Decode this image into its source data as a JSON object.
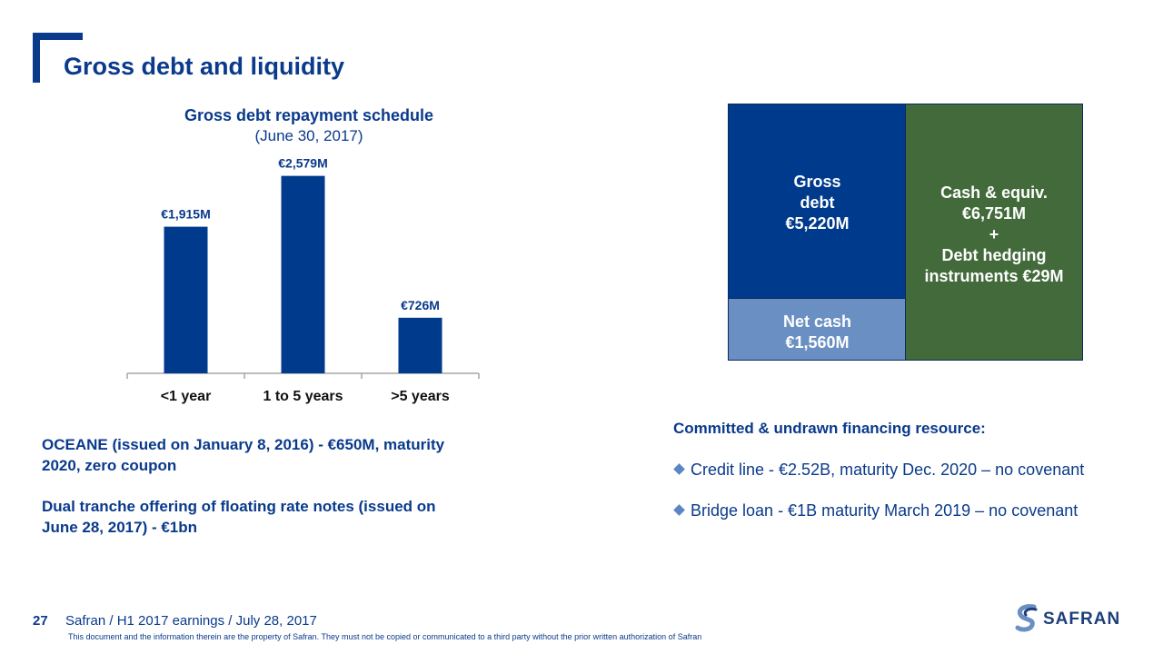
{
  "header": {
    "title": "Gross debt and liquidity"
  },
  "chart_data": {
    "type": "bar",
    "title": "Gross debt repayment schedule",
    "subtitle": "(June 30, 2017)",
    "categories": [
      "<1 year",
      "1 to 5 years",
      ">5 years"
    ],
    "values": [
      1915,
      2579,
      726
    ],
    "data_labels": [
      "€1,915M",
      "€2,579M",
      "€726M"
    ],
    "ylim": [
      0,
      2800
    ],
    "grid": false,
    "color": "#003a8c"
  },
  "boxes": {
    "gross": {
      "line1": "Gross",
      "line2": "debt",
      "line3": "€5,220M"
    },
    "net": {
      "line1": "Net cash",
      "line2": "€1,560M"
    },
    "cash": {
      "line1": "Cash & equiv.",
      "line2": "€6,751M",
      "line3": "+",
      "line4": "Debt hedging",
      "line5": "instruments €29M"
    }
  },
  "left_notes": {
    "oceane_line1": "OCEANE (issued on January 8, 2016) - €650M, maturity",
    "oceane_line2": "2020, zero coupon",
    "frn_line1": "Dual tranche offering of floating rate notes (issued on",
    "frn_line2": "June 28, 2017)  - €1bn"
  },
  "financing": {
    "heading": "Committed & undrawn financing resource:",
    "bullets": [
      "Credit line - €2.52B, maturity Dec. 2020 – no covenant",
      "Bridge loan - €1B maturity March 2019 – no covenant"
    ]
  },
  "footer": {
    "page": "27",
    "text": "Safran / H1 2017 earnings / July 28, 2017",
    "disclaimer": "This document and the information therein are the property of Safran. They must not be copied or communicated to a third party without the prior written authorization of Safran",
    "logo_text": "SAFRAN"
  },
  "colors": {
    "brand_blue": "#0a3a8c",
    "net_cash": "#6a8fc2",
    "cash_green": "#426a3a"
  }
}
